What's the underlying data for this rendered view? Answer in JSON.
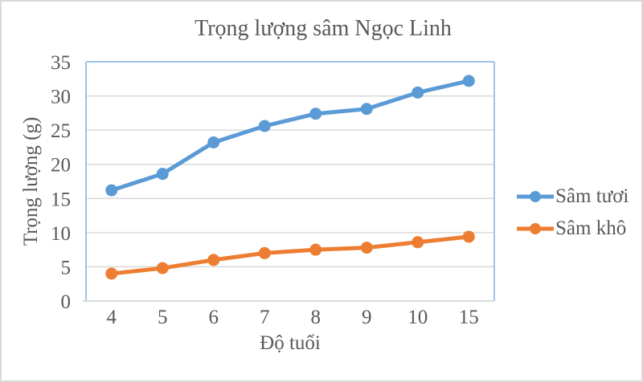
{
  "chart_data": {
    "type": "line",
    "title": "Trọng lượng sâm Ngọc Linh",
    "xlabel": "Độ tuổi",
    "ylabel": "Trọng lượng (g)",
    "categories": [
      "4",
      "5",
      "6",
      "7",
      "8",
      "9",
      "10",
      "15"
    ],
    "series": [
      {
        "name": "Sâm tươi",
        "color": "#5B9BD5",
        "values": [
          16.2,
          18.6,
          23.2,
          25.6,
          27.4,
          28.1,
          30.5,
          32.2
        ]
      },
      {
        "name": "Sâm khô",
        "color": "#ED7D31",
        "values": [
          4.0,
          4.8,
          6.0,
          7.0,
          7.5,
          7.8,
          8.6,
          9.4
        ]
      }
    ],
    "ylim": [
      0,
      35
    ],
    "ytick_step": 5,
    "grid": true,
    "marker": "circle",
    "legend_position": "right",
    "colors": {
      "text": "#595959",
      "gridline": "#D9D9D9",
      "plot_border": "#9DC3E6",
      "axis_line": "#D9D9D9",
      "frame_border": "#D9D9D9",
      "background": "#FFFFFF"
    }
  }
}
